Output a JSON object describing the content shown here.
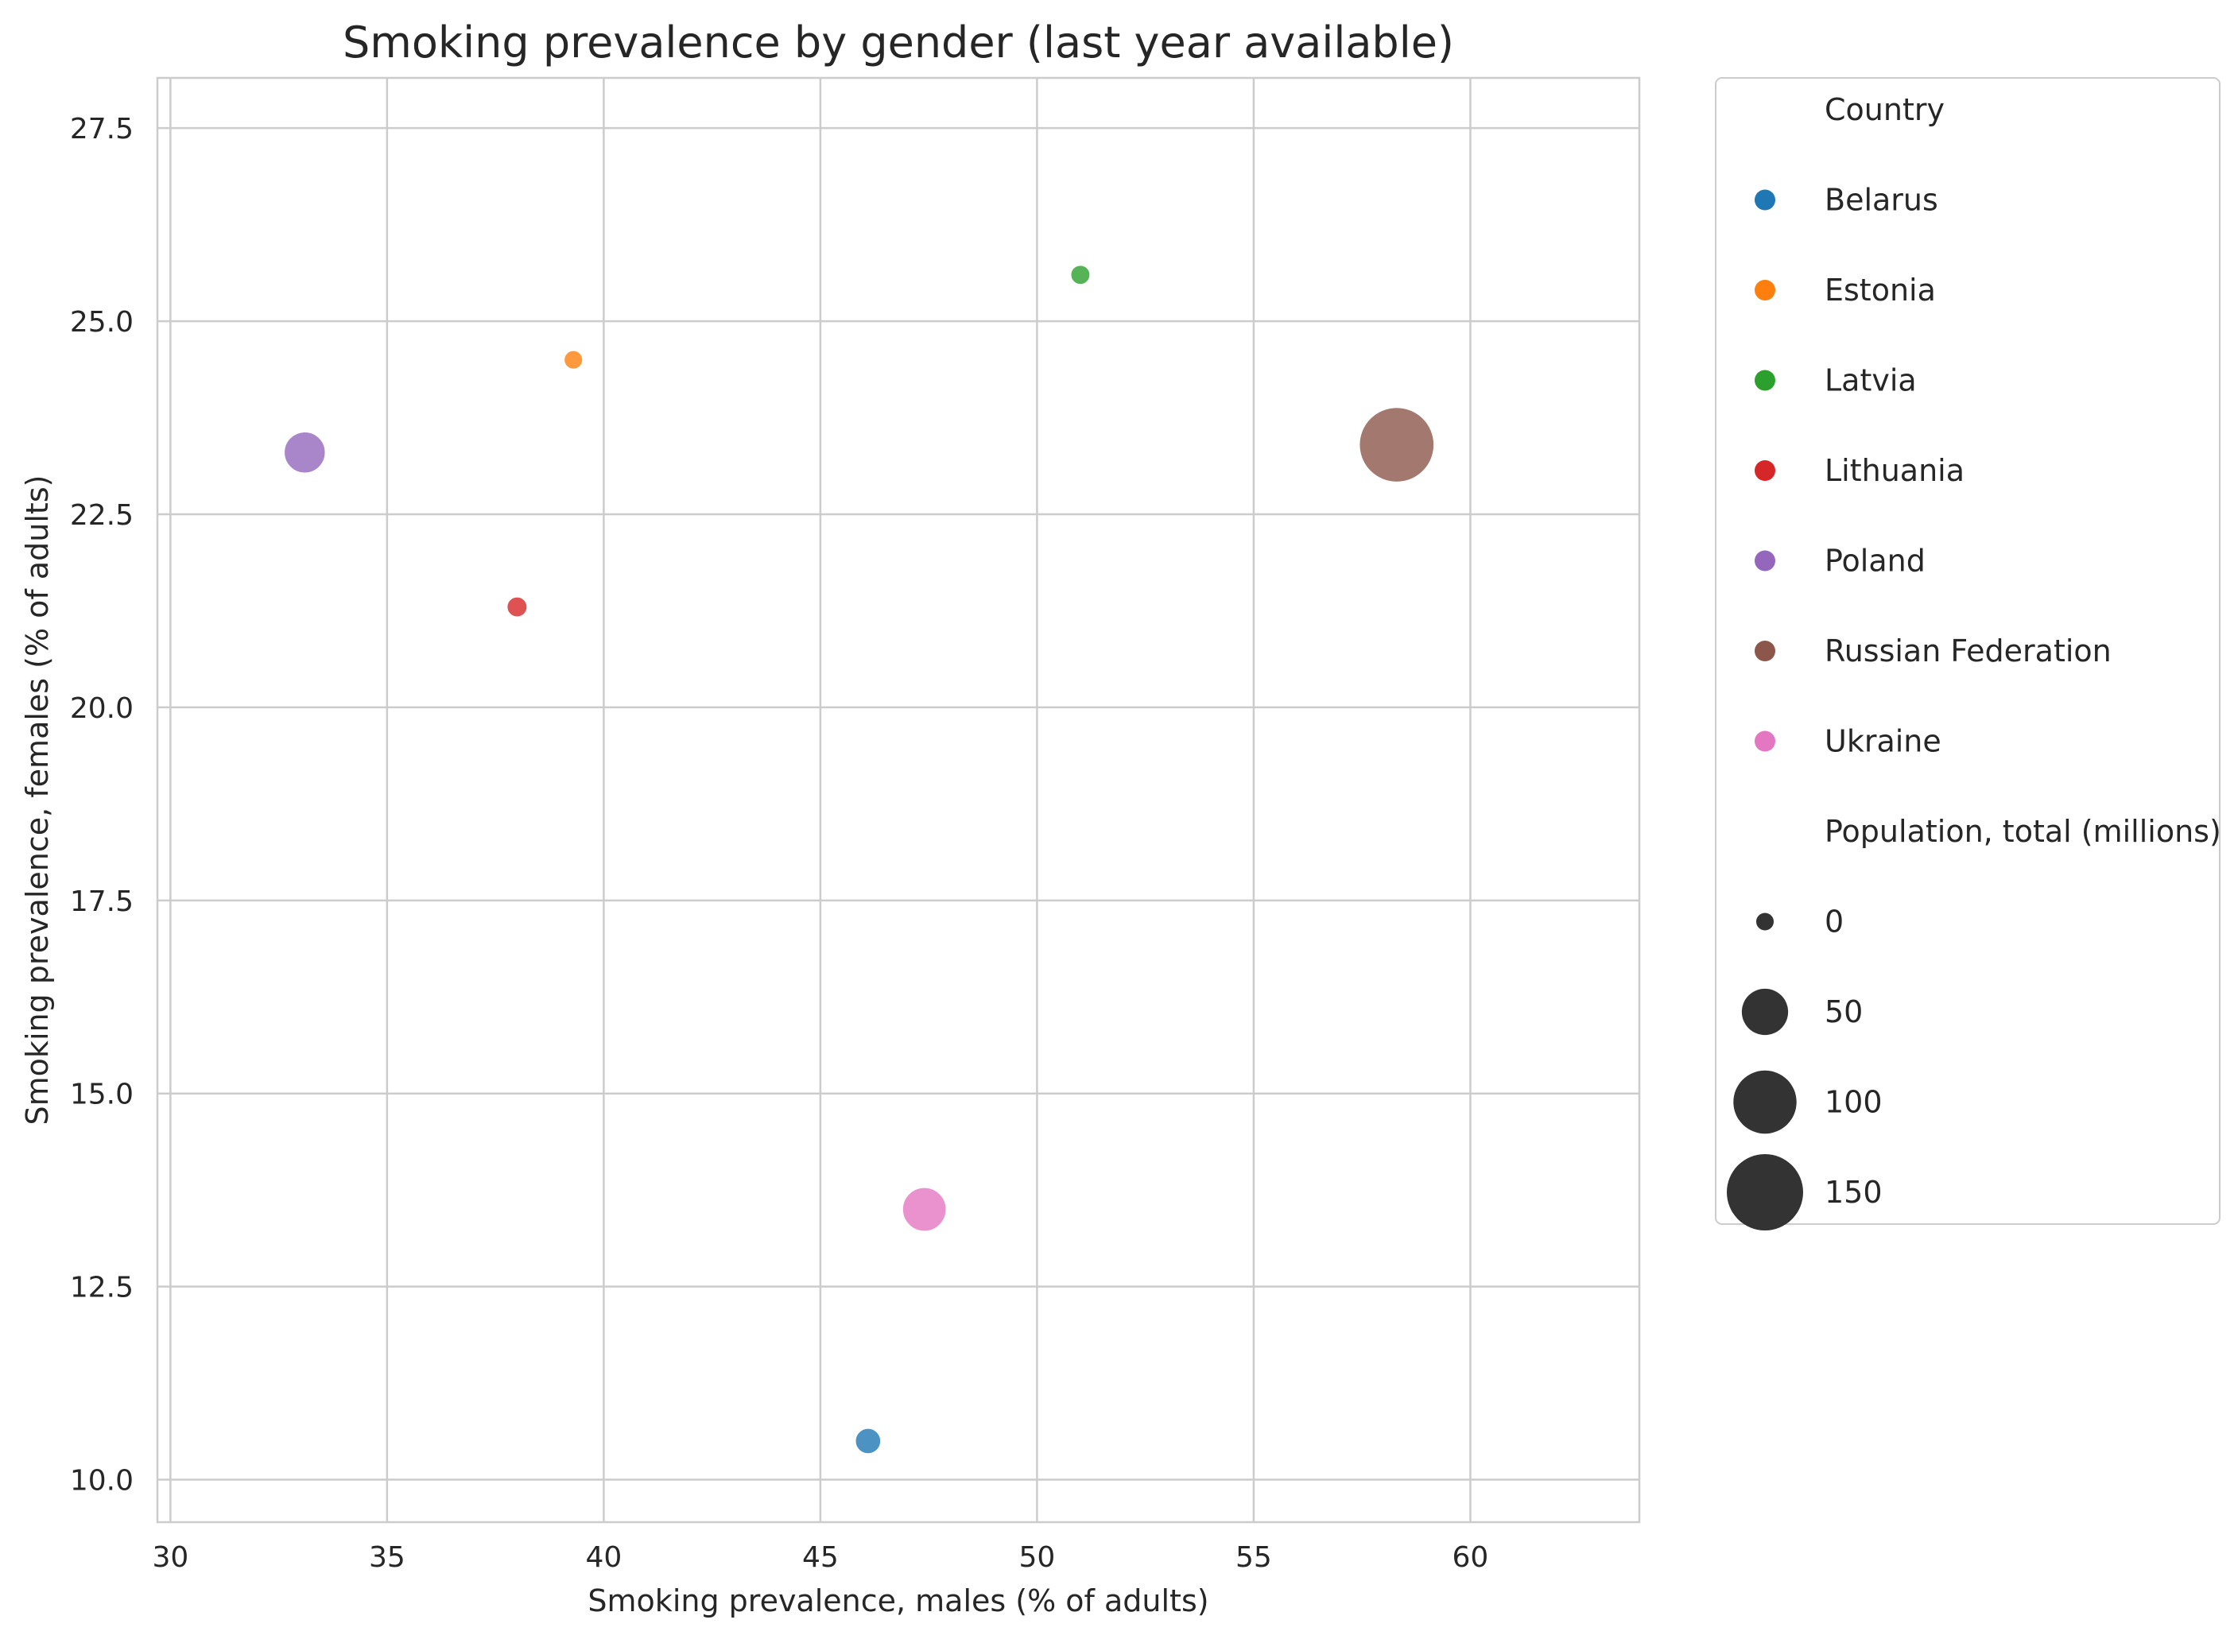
{
  "chart_data": {
    "type": "scatter",
    "title": "Smoking prevalence by gender (last year available)",
    "xlabel": "Smoking prevalence, males (% of adults)",
    "ylabel": "Smoking prevalence, females (% of adults)",
    "xlim": [
      29.7,
      63.9
    ],
    "ylim": [
      9.45,
      28.15
    ],
    "xticks": [
      "30",
      "35",
      "40",
      "45",
      "50",
      "55",
      "60"
    ],
    "yticks": [
      "10.0",
      "12.5",
      "15.0",
      "17.5",
      "20.0",
      "22.5",
      "25.0",
      "27.5"
    ],
    "grid": true,
    "legend_placement": "outside right",
    "series": [
      {
        "name": "Belarus",
        "x": 46.1,
        "y": 10.5,
        "population_millions": 9.4,
        "color": "#1f77b4"
      },
      {
        "name": "Estonia",
        "x": 39.3,
        "y": 24.5,
        "population_millions": 1.3,
        "color": "#ff7f0e"
      },
      {
        "name": "Latvia",
        "x": 51.0,
        "y": 25.6,
        "population_millions": 1.9,
        "color": "#2ca02c"
      },
      {
        "name": "Lithuania",
        "x": 38.0,
        "y": 21.3,
        "population_millions": 2.8,
        "color": "#d62728"
      },
      {
        "name": "Poland",
        "x": 33.1,
        "y": 23.3,
        "population_millions": 38.0,
        "color": "#9467bd"
      },
      {
        "name": "Russian Federation",
        "x": 58.3,
        "y": 23.4,
        "population_millions": 144.0,
        "color": "#8c564b"
      },
      {
        "name": "Ukraine",
        "x": 47.4,
        "y": 13.5,
        "population_millions": 44.0,
        "color": "#e377c2"
      }
    ],
    "legend": {
      "hue_title": "Country",
      "size_title": "Population, total (millions)",
      "size_entries": [
        {
          "label": "0",
          "value": 0
        },
        {
          "label": "50",
          "value": 50
        },
        {
          "label": "100",
          "value": 100
        },
        {
          "label": "150",
          "value": 150
        }
      ],
      "size_marker_color": "#333333"
    }
  }
}
